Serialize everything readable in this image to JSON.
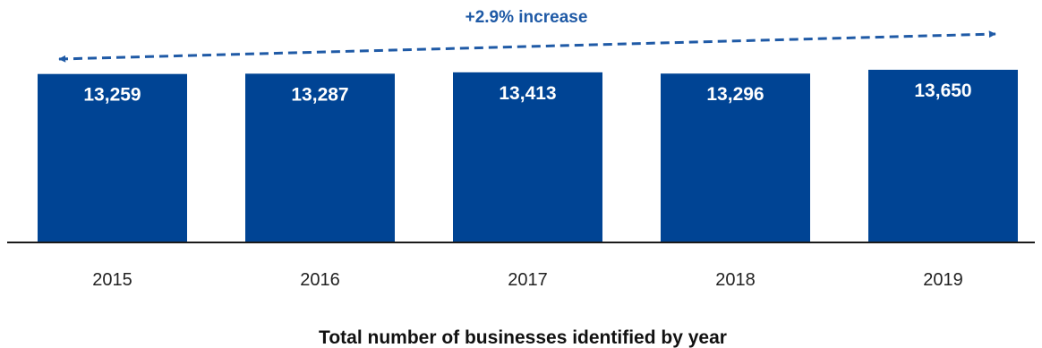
{
  "chart_data": {
    "type": "bar",
    "categories": [
      "2015",
      "2016",
      "2017",
      "2018",
      "2019"
    ],
    "values": [
      13259,
      13287,
      13413,
      13296,
      13650
    ],
    "value_labels": [
      "13,259",
      "13,287",
      "13,413",
      "13,296",
      "13,650"
    ],
    "title": "Total number of businesses identified by year",
    "annotation": "+2.9% increase",
    "xlabel": "",
    "ylabel": "",
    "grid": false,
    "bar_color": "#004494",
    "annotation_color": "#1f5aa6"
  }
}
